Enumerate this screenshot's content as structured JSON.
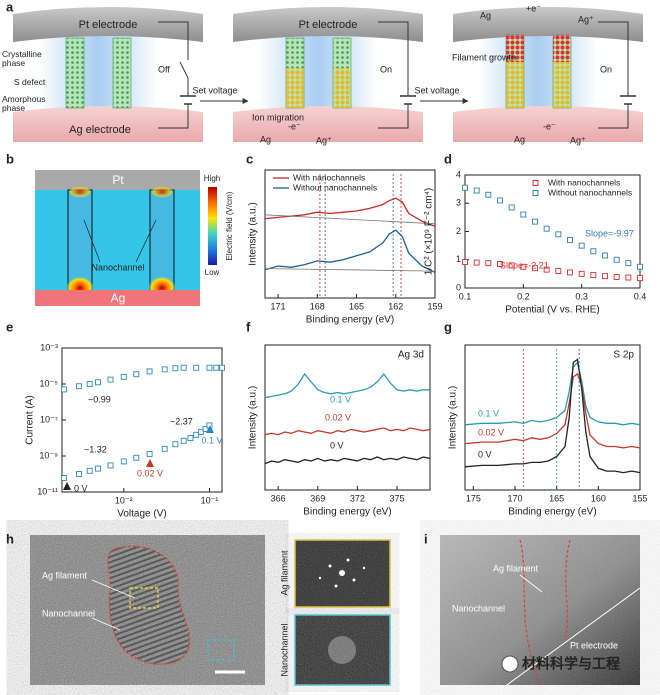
{
  "panel_labels": [
    "a",
    "b",
    "c",
    "d",
    "e",
    "f",
    "g",
    "h",
    "i"
  ],
  "panel_a": {
    "pt_electrode": [
      "Pt electrode",
      "Pt electrode"
    ],
    "ag_electrode": "Ag electrode",
    "labels": [
      "Crystalline phase",
      "S defect",
      "Amorphous phase"
    ],
    "switch": [
      "Off",
      "On",
      "On"
    ],
    "arrow": [
      "Set voltage",
      "Set voltage"
    ],
    "ion_migration": "Ion migration",
    "filament_growth": "Filament growth",
    "ag": [
      "Ag",
      "Ag",
      "Ag"
    ],
    "electron": [
      "-e⁻",
      "-e⁻",
      "+e⁻"
    ],
    "ag_ion": [
      "Ag⁺",
      "Ag⁺",
      "Ag⁺"
    ]
  },
  "panel_b": {
    "top": "Pt",
    "bottom": "Ag",
    "channel": "Nanochannel",
    "high": "High",
    "low": "Low",
    "colorbar_label": "Electric field (V/cm)"
  },
  "chart_data": [
    {
      "type": "line",
      "xlabel": "Binding energy (eV)",
      "ylabel": "Intensity (a.u.)",
      "xlim": [
        172,
        159
      ],
      "ylim": [
        0,
        10
      ],
      "xticks": [
        171,
        168,
        165,
        162,
        159
      ],
      "legend": "upper left",
      "x": [
        172,
        171,
        170,
        169,
        168,
        167,
        166,
        165,
        164,
        163,
        162.5,
        162,
        161.5,
        161,
        160,
        159
      ],
      "series": [
        {
          "name": "With nanochannels",
          "color": "#c62828",
          "values": [
            6.2,
            6.3,
            6.4,
            6.5,
            6.7,
            6.6,
            6.7,
            6.8,
            7.0,
            7.3,
            7.6,
            7.8,
            7.5,
            6.6,
            6.0,
            5.6
          ]
        },
        {
          "name": "Without nanochannels",
          "color": "#1f5f9e",
          "values": [
            2.2,
            2.5,
            2.4,
            2.6,
            2.9,
            2.8,
            3.0,
            3.3,
            3.6,
            4.3,
            5.0,
            5.3,
            4.8,
            3.5,
            2.5,
            2.0
          ]
        },
        {
          "color": "#777777",
          "x": [
            172,
            159
          ],
          "values": [
            6.5,
            5.8
          ]
        },
        {
          "color": "#777777",
          "x": [
            172,
            159
          ],
          "values": [
            2.3,
            2.1
          ]
        }
      ],
      "vlines": [
        {
          "value": 167.8,
          "color": "#c62828"
        },
        {
          "value": 167.4,
          "color": "#1f5f9e"
        },
        {
          "value": 162.2,
          "color": "#1f5f9e"
        },
        {
          "value": 161.6,
          "color": "#c62828"
        }
      ]
    },
    {
      "type": "scatter",
      "marker": "square",
      "xlabel": "Potential (V vs. RHE)",
      "ylabel": "1/C² (×10⁹ F⁻² cm⁴)",
      "xlim": [
        0.1,
        0.4
      ],
      "ylim": [
        0,
        4
      ],
      "xticks": [
        0.1,
        0.2,
        0.3,
        0.4
      ],
      "yticks": [
        0,
        1,
        2,
        3,
        4
      ],
      "legend": "upper right",
      "x": [
        0.1,
        0.12,
        0.14,
        0.16,
        0.18,
        0.2,
        0.22,
        0.24,
        0.26,
        0.28,
        0.3,
        0.32,
        0.34,
        0.36,
        0.38,
        0.4
      ],
      "series": [
        {
          "name": "With nanochannels",
          "color": "#d32f2f",
          "values": [
            0.92,
            0.9,
            0.88,
            0.85,
            0.8,
            0.75,
            0.7,
            0.65,
            0.6,
            0.55,
            0.5,
            0.46,
            0.42,
            0.39,
            0.37,
            0.35
          ]
        },
        {
          "name": "Without nanochannels",
          "color": "#2e7fa8",
          "values": [
            3.55,
            3.45,
            3.3,
            3.1,
            2.85,
            2.6,
            2.35,
            2.1,
            1.9,
            1.7,
            1.5,
            1.3,
            1.15,
            1.0,
            0.88,
            0.75
          ]
        }
      ],
      "annotations": [
        "Slope=-9.97",
        "Slope=-2.21"
      ]
    },
    {
      "type": "scatter",
      "marker": "square",
      "xlabel": "Voltage (V)",
      "ylabel": "Current (A)",
      "log_x": true,
      "log_y": true,
      "xlim": [
        0.0019,
        0.14
      ],
      "ylim": [
        1e-11,
        0.001
      ],
      "xticks": [
        {
          "value": 0.01,
          "label": "10⁻²"
        },
        {
          "value": 0.1,
          "label": "10⁻¹"
        }
      ],
      "yticks": [
        {
          "value": 1e-11,
          "label": "10⁻¹¹"
        },
        {
          "value": 1e-09,
          "label": "10⁻⁹"
        },
        {
          "value": 1e-07,
          "label": "10⁻⁷"
        },
        {
          "value": 1e-05,
          "label": "10⁻⁵"
        },
        {
          "value": 0.001,
          "label": "10⁻³"
        }
      ],
      "series": [
        {
          "color": "#2e86c1",
          "x": [
            0.002,
            0.003,
            0.004,
            0.005,
            0.007,
            0.01,
            0.014,
            0.02,
            0.03,
            0.04,
            0.05,
            0.06,
            0.07,
            0.08,
            0.09,
            0.1
          ],
          "values": [
            6e-11,
            1e-10,
            1.5e-10,
            2e-10,
            3e-10,
            5e-10,
            8e-10,
            1.3e-09,
            2.5e-09,
            4.5e-09,
            7e-09,
            1e-08,
            1.5e-08,
            2.2e-08,
            3.2e-08,
            5e-08
          ]
        },
        {
          "color": "#2e86c1",
          "x": [
            0.002,
            0.003,
            0.004,
            0.005,
            0.007,
            0.01,
            0.014,
            0.02,
            0.03,
            0.04,
            0.05,
            0.07,
            0.1,
            0.12,
            0.14
          ],
          "values": [
            5e-06,
            7.5e-06,
            1e-05,
            1.25e-05,
            1.75e-05,
            2.5e-05,
            3.5e-05,
            5e-05,
            6.5e-05,
            7.5e-05,
            8e-05,
            8e-05,
            8e-05,
            8e-05,
            8e-05
          ]
        }
      ],
      "annotations": [
        "~0.99",
        "~1.32",
        "~2.37",
        "0 V",
        "0.02 V",
        "0.1 V"
      ]
    },
    {
      "type": "line",
      "title": "Ag 3d",
      "xlabel": "Binding energy (eV)",
      "ylabel": "Intensity (a.u.)",
      "xlim": [
        365,
        377.5
      ],
      "ylim": [
        0,
        11
      ],
      "xticks": [
        366,
        369,
        372,
        375
      ],
      "x": [
        365,
        365.5,
        366,
        366.5,
        367,
        367.5,
        368,
        368.5,
        369,
        369.5,
        370,
        370.5,
        371,
        371.5,
        372,
        372.5,
        373,
        373.5,
        374,
        374.5,
        375,
        375.5,
        376,
        376.5,
        377,
        377.5
      ],
      "series": [
        {
          "name": "0.1 V",
          "color": "#2a9bb5",
          "values": [
            7.0,
            7.1,
            7.2,
            7.3,
            7.5,
            8.0,
            8.8,
            8.2,
            7.6,
            7.4,
            7.3,
            7.4,
            7.3,
            7.4,
            7.5,
            7.6,
            7.8,
            8.2,
            8.8,
            8.1,
            7.6,
            7.5,
            7.6,
            7.5,
            7.6,
            7.6
          ]
        },
        {
          "name": "0.02 V",
          "color": "#c0392b",
          "values": [
            4.2,
            4.3,
            4.2,
            4.4,
            4.3,
            4.5,
            4.4,
            4.3,
            4.5,
            4.4,
            4.3,
            4.5,
            4.4,
            4.6,
            4.5,
            4.4,
            4.5,
            4.6,
            4.7,
            4.5,
            4.6,
            4.5,
            4.7,
            4.6,
            4.5,
            4.6
          ]
        },
        {
          "name": "0 V",
          "color": "#222222",
          "values": [
            2.0,
            2.2,
            2.1,
            2.3,
            2.2,
            2.1,
            2.3,
            2.2,
            2.4,
            2.2,
            2.3,
            2.2,
            2.4,
            2.3,
            2.2,
            2.4,
            2.3,
            2.5,
            2.3,
            2.4,
            2.3,
            2.5,
            2.4,
            2.3,
            2.5,
            2.4
          ]
        }
      ]
    },
    {
      "type": "line",
      "title": "S 2p",
      "xlabel": "Binding energy (eV)",
      "ylabel": "Intensity (a.u.)",
      "xlim": [
        176,
        155
      ],
      "ylim": [
        0,
        10
      ],
      "xticks": [
        175,
        170,
        165,
        160,
        155
      ],
      "x": [
        176,
        174,
        172,
        170,
        169,
        168,
        167,
        166,
        165,
        164,
        163.5,
        163,
        162.5,
        162,
        161.5,
        161,
        160,
        159,
        158,
        157,
        156,
        155
      ],
      "series": [
        {
          "name": "0.1 V",
          "color": "#2a9bb5",
          "values": [
            4.5,
            4.6,
            4.6,
            4.7,
            4.6,
            4.8,
            4.7,
            4.8,
            5.0,
            5.5,
            6.8,
            8.5,
            8.8,
            7.5,
            5.8,
            5.0,
            4.7,
            4.6,
            4.6,
            4.5,
            4.6,
            4.5
          ]
        },
        {
          "name": "0.02 V",
          "color": "#c0392b",
          "values": [
            3.2,
            3.3,
            3.3,
            3.5,
            3.4,
            3.6,
            3.5,
            3.6,
            3.9,
            4.5,
            6.0,
            7.8,
            8.0,
            7.2,
            5.3,
            3.8,
            3.2,
            3.0,
            3.0,
            2.9,
            3.0,
            2.9
          ]
        },
        {
          "name": "0 V",
          "color": "#222222",
          "values": [
            1.6,
            1.7,
            1.7,
            1.8,
            1.8,
            1.9,
            1.9,
            2.0,
            2.3,
            3.0,
            5.0,
            8.8,
            9.0,
            7.0,
            4.0,
            2.3,
            1.5,
            1.3,
            1.3,
            1.2,
            1.3,
            1.2
          ]
        }
      ],
      "vlines": [
        {
          "value": 169,
          "color": "#c0392b"
        },
        {
          "value": 165,
          "color": "#2a9bb5"
        },
        {
          "value": 162.3,
          "color": "#1f5f9e"
        }
      ]
    }
  ],
  "panel_h": {
    "filament": "Ag filament",
    "channel": "Nanochannel",
    "inset_labels": [
      "Ag filament",
      "Nanochannel"
    ]
  },
  "panel_i": {
    "filament": "Ag filament",
    "channel": "Nanochannel",
    "electrode": "Pt electrode"
  },
  "watermark": "材料科学与工程"
}
